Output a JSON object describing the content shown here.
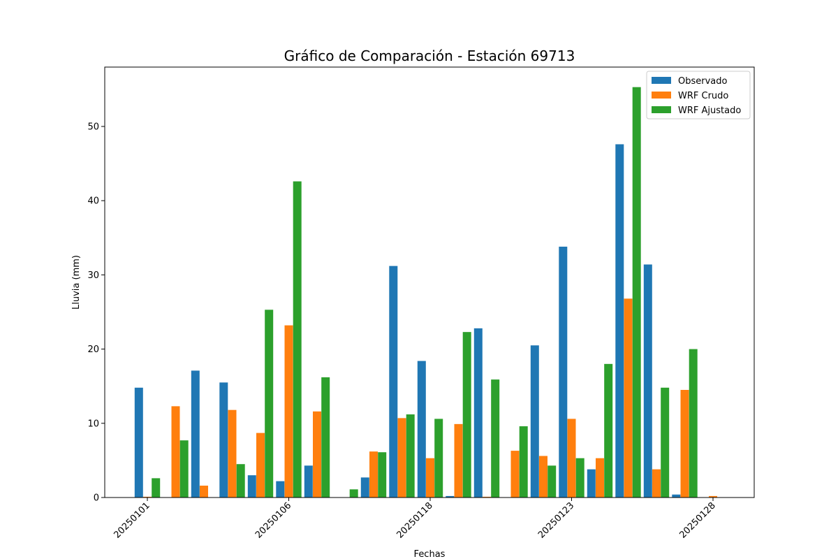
{
  "chart_data": {
    "type": "bar",
    "title": "Gráfico de Comparación - Estación 69713",
    "xlabel": "Fechas",
    "ylabel": "Lluvia (mm)",
    "ylim": [
      0,
      58
    ],
    "yticks": [
      0,
      10,
      20,
      30,
      40,
      50
    ],
    "xtick_labels": [
      {
        "index": 0,
        "label": "20250101"
      },
      {
        "index": 5,
        "label": "20250106"
      },
      {
        "index": 10,
        "label": "20250118"
      },
      {
        "index": 15,
        "label": "20250123"
      },
      {
        "index": 20,
        "label": "20250128"
      }
    ],
    "category_count": 21,
    "grid": false,
    "legend_position": "top-right",
    "series": [
      {
        "name": "Observado",
        "color": "#1f77b4",
        "values": [
          14.8,
          0,
          17.1,
          15.5,
          3.0,
          2.2,
          4.3,
          0,
          2.7,
          31.2,
          18.4,
          0.2,
          22.8,
          0,
          20.5,
          33.8,
          3.8,
          47.6,
          31.4,
          0.4,
          0
        ]
      },
      {
        "name": "WRF Crudo",
        "color": "#ff7f0e",
        "values": [
          0.1,
          12.3,
          1.6,
          11.8,
          8.7,
          23.2,
          11.6,
          0,
          6.2,
          10.7,
          5.3,
          9.9,
          0.1,
          6.3,
          5.6,
          10.6,
          5.3,
          26.8,
          3.8,
          14.5,
          0.2
        ]
      },
      {
        "name": "WRF Ajustado",
        "color": "#2ca02c",
        "values": [
          2.6,
          7.7,
          0,
          4.5,
          25.3,
          42.6,
          16.2,
          1.1,
          6.1,
          11.2,
          10.6,
          22.3,
          15.9,
          9.6,
          4.3,
          5.3,
          18.0,
          55.3,
          14.8,
          20.0,
          0
        ]
      }
    ]
  }
}
